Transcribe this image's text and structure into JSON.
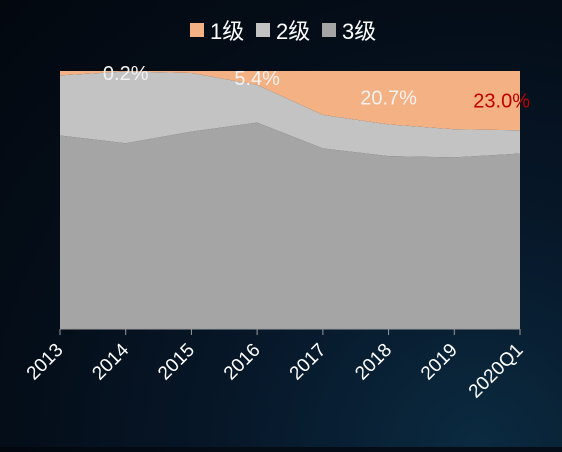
{
  "chart_data": {
    "type": "area",
    "stacked": true,
    "normalized_percent": true,
    "categories": [
      "2013",
      "2014",
      "2015",
      "2016",
      "2017",
      "2018",
      "2019",
      "2020Q1"
    ],
    "series": [
      {
        "name": "3级",
        "color": "#a5a5a5",
        "values": [
          75.0,
          72.0,
          76.5,
          80.0,
          70.0,
          67.0,
          66.5,
          68.0
        ]
      },
      {
        "name": "2级",
        "color": "#c3c3c3",
        "values": [
          23.3,
          27.8,
          22.7,
          14.6,
          13.0,
          12.3,
          10.9,
          9.0
        ]
      },
      {
        "name": "1级",
        "color": "#f4b183",
        "values": [
          1.7,
          0.2,
          0.8,
          5.4,
          17.0,
          20.7,
          22.6,
          23.0
        ]
      }
    ],
    "data_labels": [
      {
        "series": "1级",
        "category": "2014",
        "text": "0.2%",
        "color": "#f2f2f2"
      },
      {
        "series": "1级",
        "category": "2016",
        "text": "5.4%",
        "color": "#f2f2f2"
      },
      {
        "series": "1级",
        "category": "2018",
        "text": "20.7%",
        "color": "#f2f2f2"
      },
      {
        "series": "1级",
        "category": "2020Q1",
        "text": "23.0%",
        "color": "#c00000"
      }
    ],
    "ylim": [
      0,
      100
    ],
    "grid": false,
    "legend_position": "top-center",
    "title": "",
    "xlabel": "",
    "ylabel": ""
  }
}
